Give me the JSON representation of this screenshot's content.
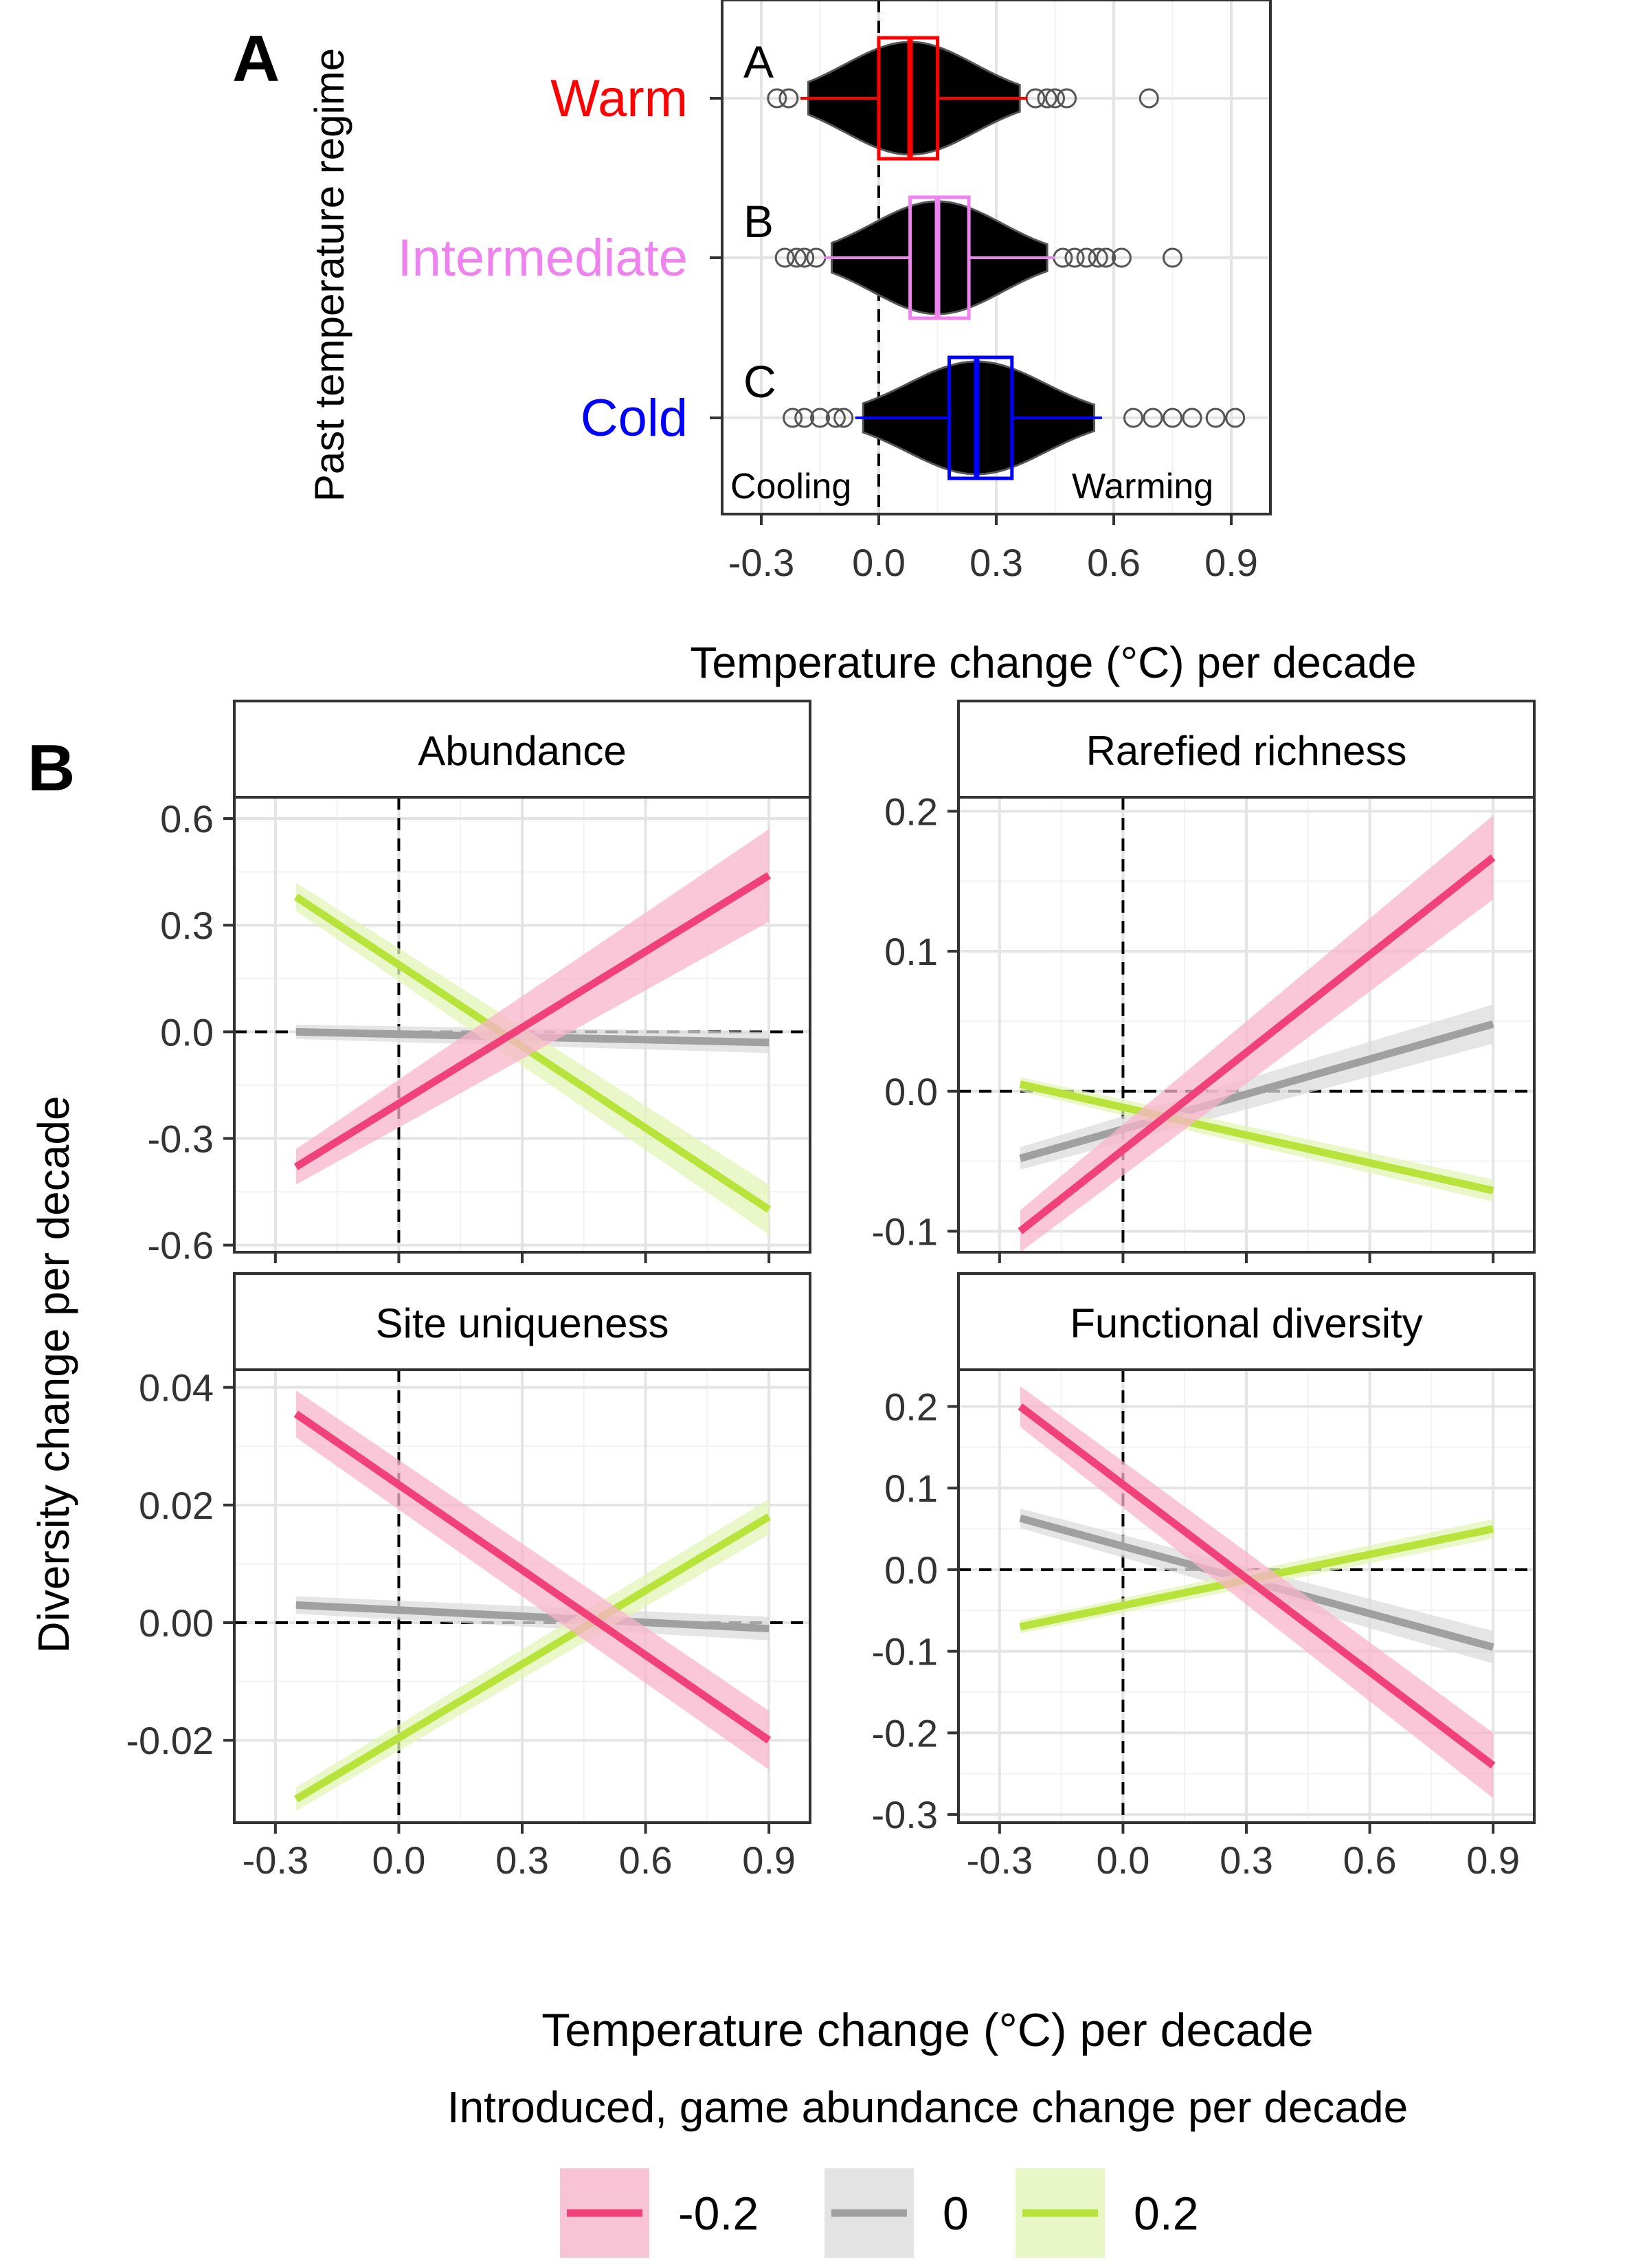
{
  "panels": {
    "a_letter": "A",
    "b_letter": "B"
  },
  "chart_data": [
    {
      "id": "panel-a",
      "type": "boxplot",
      "ylabel": "Past temperature regime",
      "xlabel_prefix": "Temperature change (",
      "xlabel_unit": "°C",
      "xlabel_suffix": ") per decade",
      "xlim": [
        -0.4,
        1.0
      ],
      "xticks": [
        -0.3,
        0.0,
        0.3,
        0.6,
        0.9
      ],
      "xtick_labels": [
        "-0.3",
        "0.0",
        "0.3",
        "0.6",
        "0.9"
      ],
      "vline": 0,
      "annotations": {
        "left": "Cooling",
        "right": "Warming"
      },
      "grid": true,
      "groups": [
        {
          "name": "Warm",
          "letter": "A",
          "color": "#ff0000",
          "q1": 0.0,
          "median": 0.08,
          "q3": 0.15,
          "whisker_low": -0.2,
          "whisker_high": 0.38,
          "outliers": [
            -0.26,
            -0.23,
            0.4,
            0.43,
            0.45,
            0.48,
            0.69
          ]
        },
        {
          "name": "Intermediate",
          "letter": "B",
          "color": "#ee82ee",
          "q1": 0.08,
          "median": 0.15,
          "q3": 0.23,
          "whisker_low": -0.14,
          "whisker_high": 0.45,
          "outliers": [
            -0.24,
            -0.21,
            -0.19,
            -0.16,
            0.47,
            0.5,
            0.53,
            0.56,
            0.58,
            0.62,
            0.75
          ]
        },
        {
          "name": "Cold",
          "letter": "C",
          "color": "#0000ff",
          "q1": 0.18,
          "median": 0.25,
          "q3": 0.34,
          "whisker_low": -0.06,
          "whisker_high": 0.57,
          "outliers": [
            -0.22,
            -0.19,
            -0.15,
            -0.11,
            -0.09,
            0.65,
            0.7,
            0.75,
            0.8,
            0.86,
            0.91
          ]
        }
      ]
    },
    {
      "id": "panel-b",
      "type": "line",
      "ylabel": "Diversity change per decade",
      "xlabel_prefix": "Temperature change (",
      "xlabel_unit": "°C",
      "xlabel_suffix": ") per decade",
      "legend_title": "Introduced, game abundance change per decade",
      "legend_position": "bottom",
      "x_range": [
        -0.25,
        0.9
      ],
      "xlim": [
        -0.4,
        1.0
      ],
      "xticks": [
        -0.3,
        0.0,
        0.3,
        0.6,
        0.9
      ],
      "xtick_labels": [
        "-0.3",
        "0.0",
        "0.3",
        "0.6",
        "0.9"
      ],
      "grid": true,
      "series_meta": [
        {
          "name": "-0.2",
          "color": "#f0417a",
          "band": "#f8b4cc"
        },
        {
          "name": "0",
          "color": "#a0a0a0",
          "band": "#dcdcdc"
        },
        {
          "name": "0.2",
          "color": "#b7e33b",
          "band": "#e3f4b7"
        }
      ],
      "facets": [
        {
          "title": "Abundance",
          "ylim": [
            -0.62,
            0.66
          ],
          "yticks": [
            -0.6,
            -0.3,
            0.0,
            0.3,
            0.6
          ],
          "ytick_labels": [
            "-0.6",
            "-0.3",
            "0.0",
            "0.3",
            "0.6"
          ],
          "series": [
            {
              "name": "-0.2",
              "y": [
                -0.38,
                0.44
              ],
              "ci_start": 0.05,
              "ci_end": 0.13
            },
            {
              "name": "0",
              "y": [
                0.0,
                -0.03
              ],
              "ci_start": 0.02,
              "ci_end": 0.03
            },
            {
              "name": "0.2",
              "y": [
                0.38,
                -0.5
              ],
              "ci_start": 0.04,
              "ci_end": 0.07
            }
          ]
        },
        {
          "title": "Rarefied richness",
          "ylim": [
            -0.115,
            0.21
          ],
          "yticks": [
            -0.1,
            0.0,
            0.1,
            0.2
          ],
          "ytick_labels": [
            "-0.1",
            "0.0",
            "0.1",
            "0.2"
          ],
          "series": [
            {
              "name": "-0.2",
              "y": [
                -0.1,
                0.167
              ],
              "ci_start": 0.015,
              "ci_end": 0.03
            },
            {
              "name": "0",
              "y": [
                -0.048,
                0.048
              ],
              "ci_start": 0.008,
              "ci_end": 0.014
            },
            {
              "name": "0.2",
              "y": [
                0.005,
                -0.071
              ],
              "ci_start": 0.005,
              "ci_end": 0.008
            }
          ]
        },
        {
          "title": "Site uniqueness",
          "ylim": [
            -0.034,
            0.043
          ],
          "yticks": [
            -0.02,
            0.0,
            0.02,
            0.04
          ],
          "ytick_labels": [
            "-0.02",
            "0.00",
            "0.02",
            "0.04"
          ],
          "series": [
            {
              "name": "-0.2",
              "y": [
                0.0355,
                -0.02
              ],
              "ci_start": 0.004,
              "ci_end": 0.005
            },
            {
              "name": "0",
              "y": [
                0.003,
                -0.001
              ],
              "ci_start": 0.0015,
              "ci_end": 0.002
            },
            {
              "name": "0.2",
              "y": [
                -0.03,
                0.018
              ],
              "ci_start": 0.002,
              "ci_end": 0.003
            }
          ]
        },
        {
          "title": "Functional diversity",
          "ylim": [
            -0.31,
            0.245
          ],
          "yticks": [
            -0.3,
            -0.2,
            -0.1,
            0.0,
            0.1,
            0.2
          ],
          "ytick_labels": [
            "-0.3",
            "-0.2",
            "-0.1",
            "0.0",
            "0.1",
            "0.2"
          ],
          "series": [
            {
              "name": "-0.2",
              "y": [
                0.2,
                -0.24
              ],
              "ci_start": 0.025,
              "ci_end": 0.04
            },
            {
              "name": "0",
              "y": [
                0.063,
                -0.095
              ],
              "ci_start": 0.012,
              "ci_end": 0.02
            },
            {
              "name": "0.2",
              "y": [
                -0.07,
                0.05
              ],
              "ci_start": 0.008,
              "ci_end": 0.012
            }
          ]
        }
      ]
    }
  ]
}
